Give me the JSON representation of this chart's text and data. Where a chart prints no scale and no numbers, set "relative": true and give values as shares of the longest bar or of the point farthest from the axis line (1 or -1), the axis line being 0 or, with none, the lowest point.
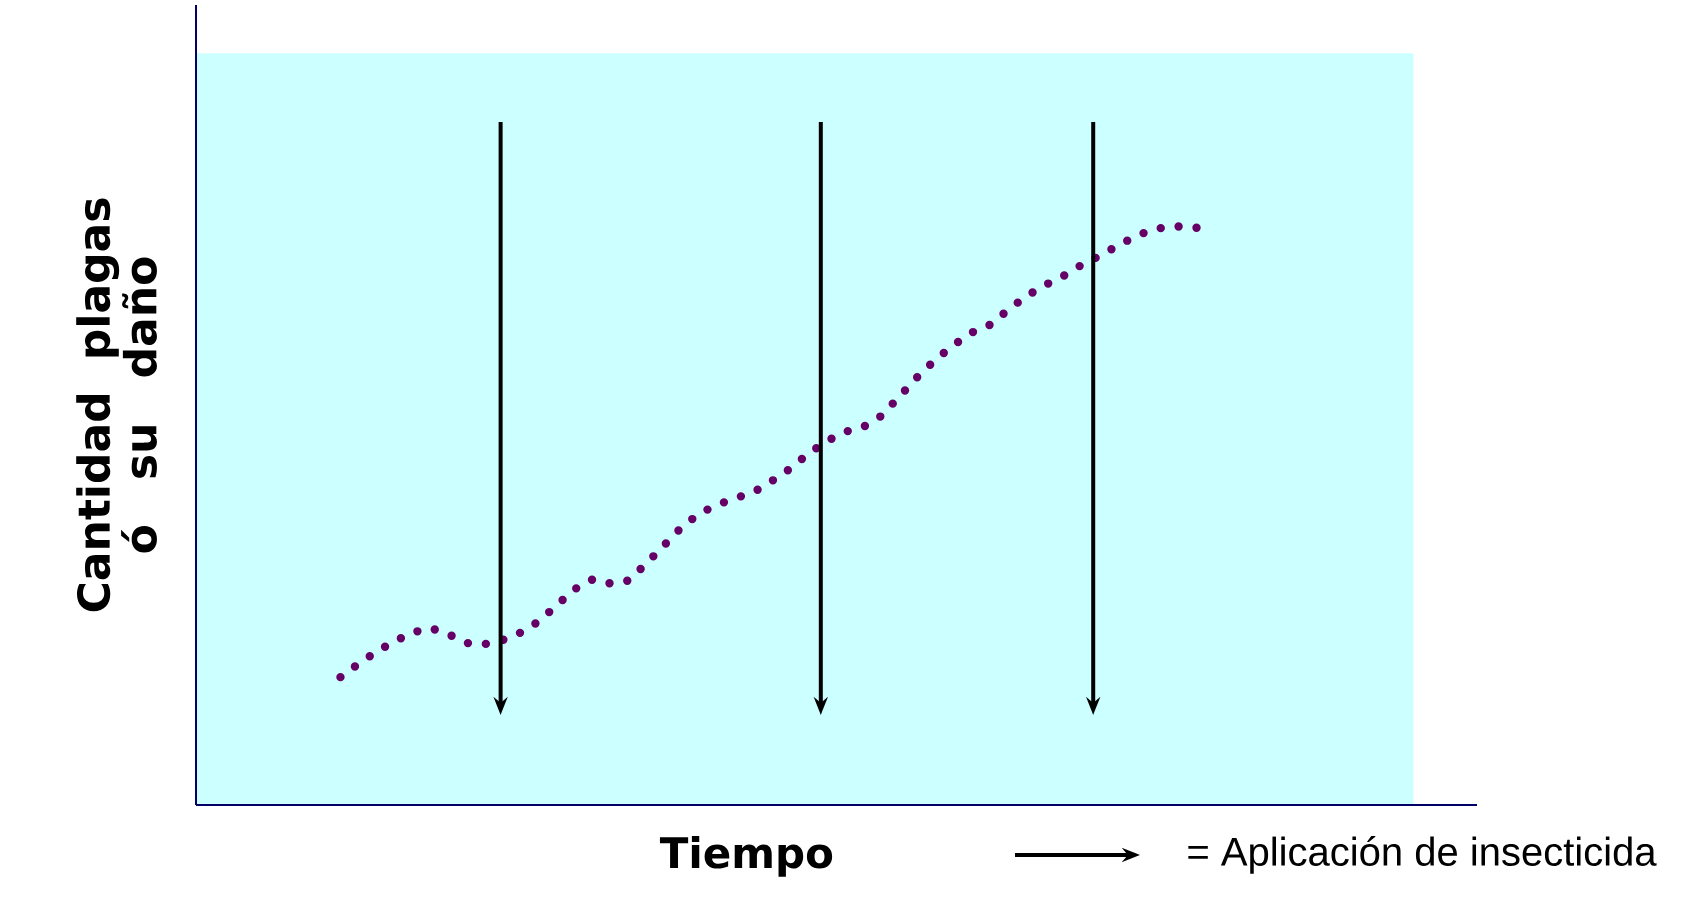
{
  "chart_data": {
    "type": "line",
    "relative": true,
    "xlabel": "Tiempo",
    "ylabel": "Cantidad plagas ó su daño",
    "categories": [
      null,
      null,
      null,
      null,
      null,
      null,
      null,
      null,
      null,
      null,
      null,
      null,
      null,
      null,
      null,
      null,
      null,
      null,
      null,
      null,
      null,
      null,
      null,
      null,
      null,
      null,
      null,
      null,
      null,
      null,
      null,
      null,
      null,
      null,
      null,
      null,
      null,
      null,
      null,
      null,
      null,
      null,
      null,
      null,
      null,
      null,
      null,
      null,
      null
    ],
    "series": [
      {
        "color": "#660066",
        "line_style": "dotted",
        "values": [
          0.221,
          0.244,
          0.265,
          0.283,
          0.298,
          0.306,
          0.295,
          0.28,
          0.278,
          0.285,
          0.298,
          0.317,
          0.345,
          0.373,
          0.39,
          0.383,
          0.388,
          0.418,
          0.45,
          0.482,
          0.505,
          0.52,
          0.531,
          0.542,
          0.561,
          0.582,
          0.608,
          0.629,
          0.645,
          0.653,
          0.672,
          0.705,
          0.739,
          0.769,
          0.794,
          0.816,
          0.829,
          0.854,
          0.878,
          0.897,
          0.912,
          0.931,
          0.947,
          0.964,
          0.981,
          0.994,
          1,
          1,
          0.996
        ]
      }
    ],
    "annotations": [
      "= Aplicación de insecticida"
    ]
  }
}
